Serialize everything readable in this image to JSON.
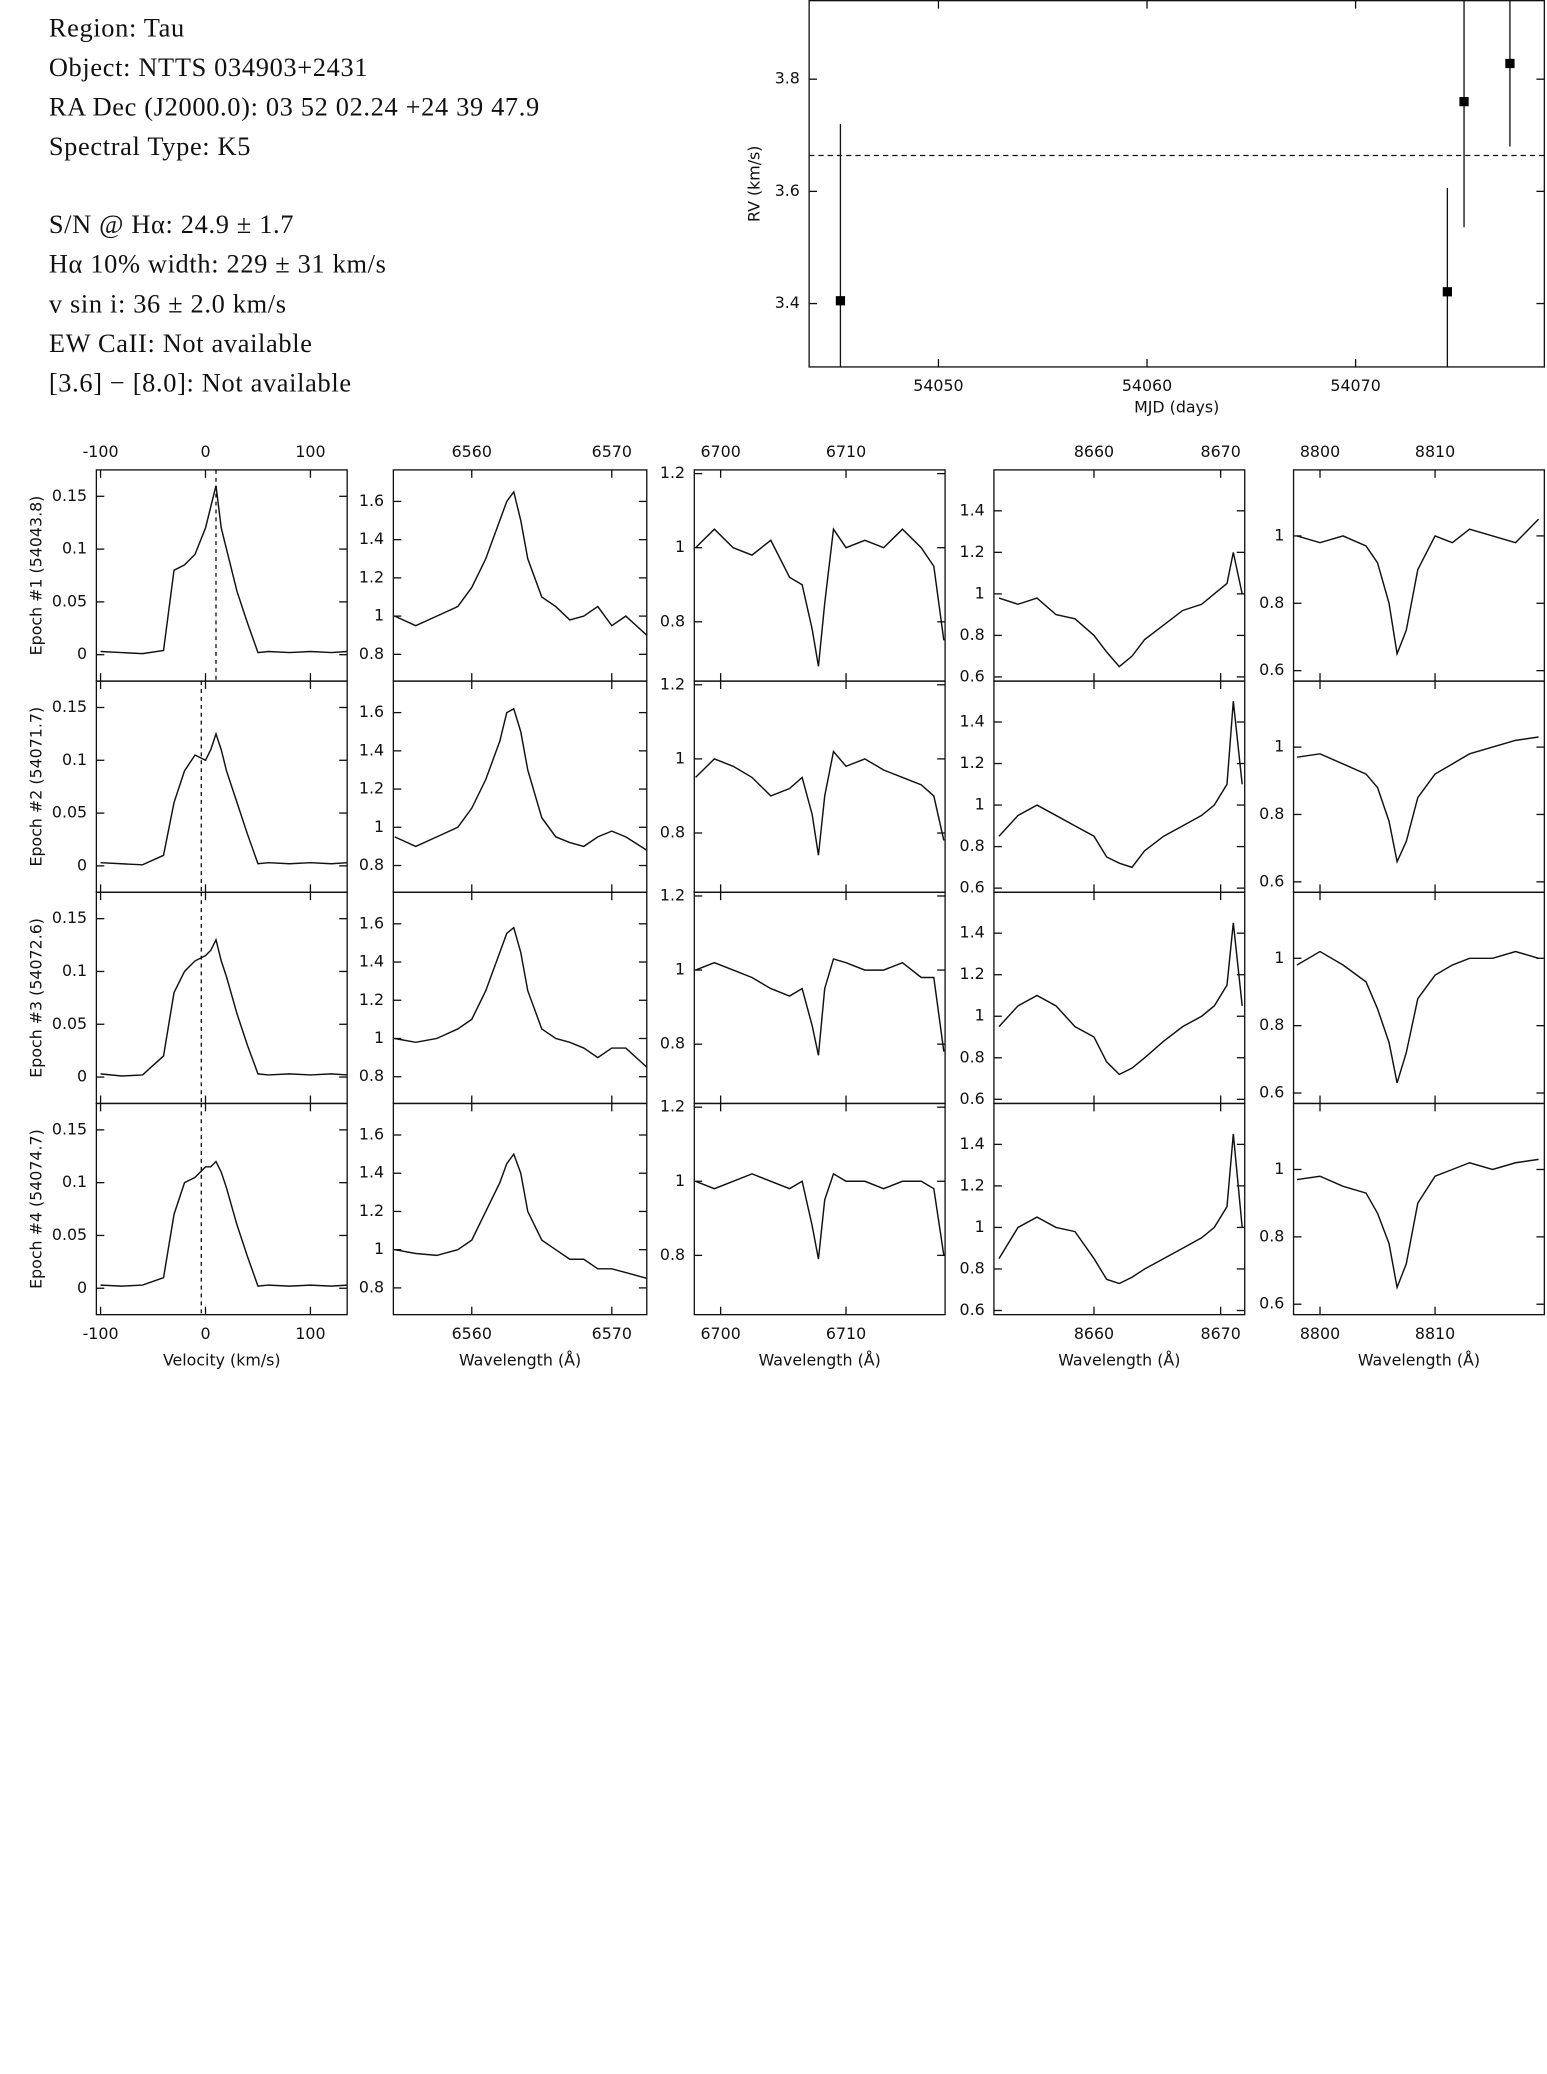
{
  "header": {
    "lines": [
      "Region: Tau",
      "Object: NTTS 034903+2431",
      "RA Dec (J2000.0): 03 52 02.24 +24 39 47.9",
      "Spectral Type: K5",
      "S/N @ Hα: 24.9 ± 1.7",
      "Hα 10% width: 229 ± 31 km/s",
      "v sin i: 36 ± 2.0 km/s",
      "EW CaII: Not available",
      "[3.6] − [8.0]: Not available"
    ]
  },
  "chart_data": [
    {
      "type": "scatter",
      "xlabel": "MJD (days)",
      "ylabel": "RV (km/s)",
      "x": [
        54045.3,
        54074.4,
        54075.2,
        54077.4
      ],
      "values": [
        3.405,
        3.421,
        3.76,
        3.828
      ],
      "errors": [
        0.315,
        0.185,
        0.224,
        0.148
      ],
      "hline": 3.664,
      "xlim": [
        54043.8,
        54079.05
      ],
      "ylim": [
        3.287,
        3.94
      ],
      "xticks": [
        54050,
        54060,
        54070
      ],
      "yticks": [
        3.4,
        3.6,
        3.8
      ],
      "color": "#000000"
    },
    {
      "type": "line",
      "ylabel": "Epoch #1 (54043.8)",
      "vline": 10,
      "x": [
        -100,
        -80,
        -60,
        -40,
        -30,
        -20,
        -10,
        0,
        5,
        10,
        15,
        20,
        30,
        40,
        50,
        60,
        80,
        100,
        120,
        135
      ],
      "values": [
        0.003,
        0.002,
        0.001,
        0.004,
        0.08,
        0.085,
        0.095,
        0.12,
        0.14,
        0.16,
        0.12,
        0.1,
        0.06,
        0.03,
        0.002,
        0.003,
        0.002,
        0.003,
        0.002,
        0.003
      ],
      "xlim": [
        -104,
        135
      ],
      "ylim": [
        -0.025,
        0.175
      ],
      "xticks": [
        -100,
        0,
        100
      ],
      "yticks": [
        0,
        0.05,
        0.1,
        0.15
      ]
    },
    {
      "type": "line",
      "x": [
        6554.5,
        6556,
        6557.5,
        6559,
        6560,
        6561,
        6562,
        6562.5,
        6563,
        6563.5,
        6564,
        6565,
        6566,
        6567,
        6568,
        6569,
        6570,
        6571,
        6572.5
      ],
      "values": [
        1.0,
        0.95,
        1.0,
        1.05,
        1.15,
        1.3,
        1.5,
        1.6,
        1.65,
        1.5,
        1.3,
        1.1,
        1.05,
        0.98,
        1.0,
        1.05,
        0.95,
        1.0,
        0.9
      ],
      "xlim": [
        6554.4,
        6572.5
      ],
      "ylim": [
        0.66,
        1.765
      ],
      "xticks": [
        6560,
        6570
      ],
      "yticks": [
        0.8,
        1,
        1.2,
        1.4,
        1.6
      ]
    },
    {
      "type": "line",
      "x": [
        6698,
        6699.5,
        6701,
        6702.5,
        6704,
        6705.5,
        6706.5,
        6707.3,
        6707.8,
        6708.3,
        6709,
        6710,
        6711.5,
        6713,
        6714.5,
        6716,
        6717,
        6717.8
      ],
      "values": [
        1.0,
        1.05,
        1.0,
        0.98,
        1.02,
        0.92,
        0.9,
        0.78,
        0.68,
        0.85,
        1.05,
        1.0,
        1.02,
        1.0,
        1.05,
        1.0,
        0.95,
        0.75
      ],
      "xlim": [
        6697.9,
        6717.9
      ],
      "ylim": [
        0.64,
        1.21
      ],
      "xticks": [
        6700,
        6710
      ],
      "yticks": [
        0.8,
        1,
        1.2
      ]
    },
    {
      "type": "line",
      "x": [
        8652.5,
        8654,
        8655.5,
        8657,
        8658.5,
        8660,
        8661,
        8662,
        8663,
        8664,
        8665.5,
        8667,
        8668.5,
        8669.5,
        8670.5,
        8671,
        8671.7
      ],
      "values": [
        0.98,
        0.95,
        0.98,
        0.9,
        0.88,
        0.8,
        0.72,
        0.65,
        0.7,
        0.78,
        0.85,
        0.92,
        0.95,
        1.0,
        1.05,
        1.2,
        1.0
      ],
      "xlim": [
        8652.1,
        8671.9
      ],
      "ylim": [
        0.58,
        1.597
      ],
      "xticks": [
        8660,
        8670
      ],
      "yticks": [
        0.6,
        0.8,
        1,
        1.2,
        1.4
      ]
    },
    {
      "type": "line",
      "x": [
        8798,
        8800,
        8802,
        8804,
        8805,
        8806,
        8806.7,
        8807.5,
        8808.5,
        8810,
        8811.5,
        8813,
        8815,
        8817,
        8819
      ],
      "values": [
        1.0,
        0.98,
        1.0,
        0.97,
        0.92,
        0.8,
        0.65,
        0.72,
        0.9,
        1.0,
        0.98,
        1.02,
        1.0,
        0.98,
        1.05
      ],
      "xlim": [
        8797.7,
        8819.5
      ],
      "ylim": [
        0.569,
        1.196
      ],
      "xticks": [
        8800,
        8810
      ],
      "yticks": [
        0.6,
        0.8,
        1
      ]
    },
    {
      "type": "line",
      "ylabel": "Epoch #2 (54071.7)",
      "vline": -4,
      "x": [
        -100,
        -80,
        -60,
        -40,
        -30,
        -20,
        -10,
        0,
        5,
        10,
        15,
        20,
        30,
        40,
        50,
        60,
        80,
        100,
        120,
        135
      ],
      "values": [
        0.003,
        0.002,
        0.001,
        0.01,
        0.06,
        0.09,
        0.105,
        0.1,
        0.11,
        0.125,
        0.11,
        0.09,
        0.06,
        0.03,
        0.002,
        0.003,
        0.002,
        0.003,
        0.002,
        0.003
      ],
      "xlim": [
        -104,
        135
      ],
      "ylim": [
        -0.025,
        0.175
      ],
      "xticks": [
        -100,
        0,
        100
      ],
      "yticks": [
        0,
        0.05,
        0.1,
        0.15
      ]
    },
    {
      "type": "line",
      "x": [
        6554.5,
        6556,
        6557.5,
        6559,
        6560,
        6561,
        6562,
        6562.5,
        6563,
        6563.5,
        6564,
        6565,
        6566,
        6567,
        6568,
        6569,
        6570,
        6571,
        6572.5
      ],
      "values": [
        0.95,
        0.9,
        0.95,
        1.0,
        1.1,
        1.25,
        1.45,
        1.6,
        1.62,
        1.5,
        1.3,
        1.05,
        0.95,
        0.92,
        0.9,
        0.95,
        0.98,
        0.95,
        0.88
      ],
      "xlim": [
        6554.4,
        6572.5
      ],
      "ylim": [
        0.66,
        1.765
      ],
      "xticks": [
        6560,
        6570
      ],
      "yticks": [
        0.8,
        1,
        1.2,
        1.4,
        1.6
      ]
    },
    {
      "type": "line",
      "x": [
        6698,
        6699.5,
        6701,
        6702.5,
        6704,
        6705.5,
        6706.5,
        6707.3,
        6707.8,
        6708.3,
        6709,
        6710,
        6711.5,
        6713,
        6714.5,
        6716,
        6717,
        6717.8
      ],
      "values": [
        0.95,
        1.0,
        0.98,
        0.95,
        0.9,
        0.92,
        0.95,
        0.85,
        0.74,
        0.9,
        1.02,
        0.98,
        1.0,
        0.97,
        0.95,
        0.93,
        0.9,
        0.78
      ],
      "xlim": [
        6697.9,
        6717.9
      ],
      "ylim": [
        0.64,
        1.21
      ],
      "xticks": [
        6700,
        6710
      ],
      "yticks": [
        0.8,
        1,
        1.2
      ]
    },
    {
      "type": "line",
      "x": [
        8652.5,
        8654,
        8655.5,
        8657,
        8658.5,
        8660,
        8661,
        8662,
        8663,
        8664,
        8665.5,
        8667,
        8668.5,
        8669.5,
        8670.5,
        8671,
        8671.7
      ],
      "values": [
        0.85,
        0.95,
        1.0,
        0.95,
        0.9,
        0.85,
        0.75,
        0.72,
        0.7,
        0.78,
        0.85,
        0.9,
        0.95,
        1.0,
        1.1,
        1.5,
        1.1
      ],
      "xlim": [
        8652.1,
        8671.9
      ],
      "ylim": [
        0.58,
        1.597
      ],
      "xticks": [
        8660,
        8670
      ],
      "yticks": [
        0.6,
        0.8,
        1,
        1.2,
        1.4
      ]
    },
    {
      "type": "line",
      "x": [
        8798,
        8800,
        8802,
        8804,
        8805,
        8806,
        8806.7,
        8807.5,
        8808.5,
        8810,
        8811.5,
        8813,
        8815,
        8817,
        8819
      ],
      "values": [
        0.97,
        0.98,
        0.95,
        0.92,
        0.88,
        0.78,
        0.66,
        0.72,
        0.85,
        0.92,
        0.95,
        0.98,
        1.0,
        1.02,
        1.03
      ],
      "xlim": [
        8797.7,
        8819.5
      ],
      "ylim": [
        0.569,
        1.196
      ],
      "xticks": [
        8800,
        8810
      ],
      "yticks": [
        0.6,
        0.8,
        1
      ]
    },
    {
      "type": "line",
      "ylabel": "Epoch #3 (54072.6)",
      "vline": -4,
      "x": [
        -100,
        -80,
        -60,
        -40,
        -30,
        -20,
        -10,
        0,
        5,
        10,
        15,
        20,
        30,
        40,
        50,
        60,
        80,
        100,
        120,
        135
      ],
      "values": [
        0.003,
        0.001,
        0.002,
        0.02,
        0.08,
        0.1,
        0.11,
        0.115,
        0.12,
        0.13,
        0.11,
        0.095,
        0.06,
        0.03,
        0.003,
        0.002,
        0.003,
        0.002,
        0.003,
        0.002
      ],
      "xlim": [
        -104,
        135
      ],
      "ylim": [
        -0.025,
        0.175
      ],
      "xticks": [
        -100,
        0,
        100
      ],
      "yticks": [
        0,
        0.05,
        0.1,
        0.15
      ]
    },
    {
      "type": "line",
      "x": [
        6554.5,
        6556,
        6557.5,
        6559,
        6560,
        6561,
        6562,
        6562.5,
        6563,
        6563.5,
        6564,
        6565,
        6566,
        6567,
        6568,
        6569,
        6570,
        6571,
        6572.5
      ],
      "values": [
        1.0,
        0.98,
        1.0,
        1.05,
        1.1,
        1.25,
        1.45,
        1.55,
        1.58,
        1.45,
        1.25,
        1.05,
        1.0,
        0.98,
        0.95,
        0.9,
        0.95,
        0.95,
        0.85
      ],
      "xlim": [
        6554.4,
        6572.5
      ],
      "ylim": [
        0.66,
        1.765
      ],
      "xticks": [
        6560,
        6570
      ],
      "yticks": [
        0.8,
        1,
        1.2,
        1.4,
        1.6
      ]
    },
    {
      "type": "line",
      "x": [
        6698,
        6699.5,
        6701,
        6702.5,
        6704,
        6705.5,
        6706.5,
        6707.3,
        6707.8,
        6708.3,
        6709,
        6710,
        6711.5,
        6713,
        6714.5,
        6716,
        6717,
        6717.8
      ],
      "values": [
        1.0,
        1.02,
        1.0,
        0.98,
        0.95,
        0.93,
        0.95,
        0.85,
        0.77,
        0.95,
        1.03,
        1.02,
        1.0,
        1.0,
        1.02,
        0.98,
        0.98,
        0.78
      ],
      "xlim": [
        6697.9,
        6717.9
      ],
      "ylim": [
        0.64,
        1.21
      ],
      "xticks": [
        6700,
        6710
      ],
      "yticks": [
        0.8,
        1,
        1.2
      ]
    },
    {
      "type": "line",
      "x": [
        8652.5,
        8654,
        8655.5,
        8657,
        8658.5,
        8660,
        8661,
        8662,
        8663,
        8664,
        8665.5,
        8667,
        8668.5,
        8669.5,
        8670.5,
        8671,
        8671.7
      ],
      "values": [
        0.95,
        1.05,
        1.1,
        1.05,
        0.95,
        0.9,
        0.78,
        0.72,
        0.75,
        0.8,
        0.88,
        0.95,
        1.0,
        1.05,
        1.15,
        1.45,
        1.05
      ],
      "xlim": [
        8652.1,
        8671.9
      ],
      "ylim": [
        0.58,
        1.597
      ],
      "xticks": [
        8660,
        8670
      ],
      "yticks": [
        0.6,
        0.8,
        1,
        1.2,
        1.4
      ]
    },
    {
      "type": "line",
      "x": [
        8798,
        8800,
        8802,
        8804,
        8805,
        8806,
        8806.7,
        8807.5,
        8808.5,
        8810,
        8811.5,
        8813,
        8815,
        8817,
        8819
      ],
      "values": [
        0.98,
        1.02,
        0.98,
        0.93,
        0.85,
        0.75,
        0.63,
        0.72,
        0.88,
        0.95,
        0.98,
        1.0,
        1.0,
        1.02,
        1.0
      ],
      "xlim": [
        8797.7,
        8819.5
      ],
      "ylim": [
        0.569,
        1.196
      ],
      "xticks": [
        8800,
        8810
      ],
      "yticks": [
        0.6,
        0.8,
        1
      ]
    },
    {
      "type": "line",
      "ylabel": "Epoch #4 (54074.7)",
      "vline": -4,
      "xlabel": "Velocity (km/s)",
      "x": [
        -100,
        -80,
        -60,
        -40,
        -30,
        -20,
        -10,
        0,
        5,
        10,
        15,
        20,
        30,
        40,
        50,
        60,
        80,
        100,
        120,
        135
      ],
      "values": [
        0.003,
        0.002,
        0.003,
        0.01,
        0.07,
        0.1,
        0.105,
        0.115,
        0.115,
        0.12,
        0.11,
        0.095,
        0.06,
        0.03,
        0.002,
        0.003,
        0.002,
        0.003,
        0.002,
        0.003
      ],
      "xlim": [
        -104,
        135
      ],
      "ylim": [
        -0.025,
        0.175
      ],
      "xticks": [
        -100,
        0,
        100
      ],
      "yticks": [
        0,
        0.05,
        0.1,
        0.15
      ]
    },
    {
      "type": "line",
      "xlabel": "Wavelength (Å)",
      "x": [
        6554.5,
        6556,
        6557.5,
        6559,
        6560,
        6561,
        6562,
        6562.5,
        6563,
        6563.5,
        6564,
        6565,
        6566,
        6567,
        6568,
        6569,
        6570,
        6571,
        6572.5
      ],
      "values": [
        1.0,
        0.98,
        0.97,
        1.0,
        1.05,
        1.2,
        1.35,
        1.45,
        1.5,
        1.4,
        1.2,
        1.05,
        1.0,
        0.95,
        0.95,
        0.9,
        0.9,
        0.88,
        0.85
      ],
      "xlim": [
        6554.4,
        6572.5
      ],
      "ylim": [
        0.66,
        1.765
      ],
      "xticks": [
        6560,
        6570
      ],
      "yticks": [
        0.8,
        1,
        1.2,
        1.4,
        1.6
      ]
    },
    {
      "type": "line",
      "xlabel": "Wavelength (Å)",
      "x": [
        6698,
        6699.5,
        6701,
        6702.5,
        6704,
        6705.5,
        6706.5,
        6707.3,
        6707.8,
        6708.3,
        6709,
        6710,
        6711.5,
        6713,
        6714.5,
        6716,
        6717,
        6717.8
      ],
      "values": [
        1.0,
        0.98,
        1.0,
        1.02,
        1.0,
        0.98,
        1.0,
        0.88,
        0.79,
        0.95,
        1.02,
        1.0,
        1.0,
        0.98,
        1.0,
        1.0,
        0.98,
        0.8
      ],
      "xlim": [
        6697.9,
        6717.9
      ],
      "ylim": [
        0.64,
        1.21
      ],
      "xticks": [
        6700,
        6710
      ],
      "yticks": [
        0.8,
        1,
        1.2
      ]
    },
    {
      "type": "line",
      "xlabel": "Wavelength (Å)",
      "x": [
        8652.5,
        8654,
        8655.5,
        8657,
        8658.5,
        8660,
        8661,
        8662,
        8663,
        8664,
        8665.5,
        8667,
        8668.5,
        8669.5,
        8670.5,
        8671,
        8671.7
      ],
      "values": [
        0.85,
        1.0,
        1.05,
        1.0,
        0.98,
        0.85,
        0.75,
        0.73,
        0.76,
        0.8,
        0.85,
        0.9,
        0.95,
        1.0,
        1.1,
        1.45,
        1.0
      ],
      "xlim": [
        8652.1,
        8671.9
      ],
      "ylim": [
        0.58,
        1.597
      ],
      "xticks": [
        8660,
        8670
      ],
      "yticks": [
        0.6,
        0.8,
        1,
        1.2,
        1.4
      ]
    },
    {
      "type": "line",
      "xlabel": "Wavelength (Å)",
      "x": [
        8798,
        8800,
        8802,
        8804,
        8805,
        8806,
        8806.7,
        8807.5,
        8808.5,
        8810,
        8811.5,
        8813,
        8815,
        8817,
        8819
      ],
      "values": [
        0.97,
        0.98,
        0.95,
        0.93,
        0.87,
        0.78,
        0.65,
        0.72,
        0.9,
        0.98,
        1.0,
        1.02,
        1.0,
        1.02,
        1.03
      ],
      "xlim": [
        8797.7,
        8819.5
      ],
      "ylim": [
        0.569,
        1.196
      ],
      "xticks": [
        8800,
        8810
      ],
      "yticks": [
        0.6,
        0.8,
        1
      ]
    }
  ]
}
